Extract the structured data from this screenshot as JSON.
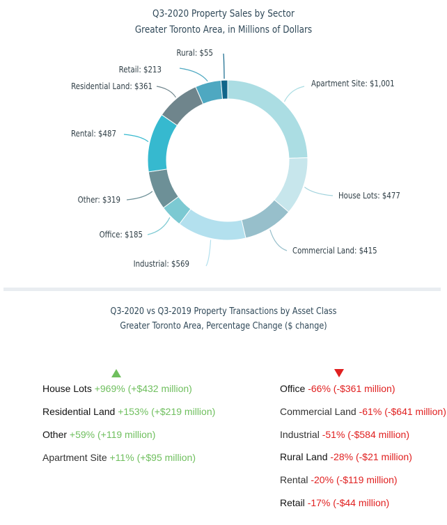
{
  "pie": {
    "title": "Q3-2020 Property Sales by Sector",
    "subtitle": "Greater Toronto Area, in Millions of Dollars"
  },
  "chart_data": [
    {
      "type": "pie",
      "title": "Q3-2020 Property Sales by Sector",
      "subtitle": "Greater Toronto Area, in Millions of Dollars",
      "slices": [
        {
          "name": "Apartment Site",
          "value": 1001,
          "label": "Apartment Site: $1,001",
          "color": "#abdde3"
        },
        {
          "name": "House Lots",
          "value": 477,
          "label": "House Lots: $477",
          "color": "#c7e6ec"
        },
        {
          "name": "Commercial Land",
          "value": 415,
          "label": "Commercial Land: $415",
          "color": "#97bfcb"
        },
        {
          "name": "Industrial",
          "value": 569,
          "label": "Industrial: $569",
          "color": "#b3e0ee"
        },
        {
          "name": "Office",
          "value": 185,
          "label": "Office: $185",
          "color": "#7cc9d2"
        },
        {
          "name": "Other",
          "value": 319,
          "label": "Other: $319",
          "color": "#6d9097"
        },
        {
          "name": "Rental",
          "value": 487,
          "label": "Rental: $487",
          "color": "#36b9cf"
        },
        {
          "name": "Residential Land",
          "value": 361,
          "label": "Residential Land: $361",
          "color": "#6f858c"
        },
        {
          "name": "Retail",
          "value": 213,
          "label": "Retail: $213",
          "color": "#4ea8c1"
        },
        {
          "name": "Rural",
          "value": 55,
          "label": "Rural: $55",
          "color": "#11668a"
        }
      ]
    },
    {
      "type": "table",
      "title": "Q3-2020 vs Q3-2019 Property Transactions by Asset Class",
      "subtitle": "Greater Toronto Area, Percentage Change ($ change)",
      "gains": [
        {
          "asset": "House Lots",
          "pct": "+969%",
          "dollars": "(+$432 million)"
        },
        {
          "asset": "Residential Land",
          "pct": "+153%",
          "dollars": "(+$219 million)"
        },
        {
          "asset": "Other",
          "pct": "+59%",
          "dollars": "(+119 million)"
        },
        {
          "asset": "Apartment Site",
          "pct": "+11%",
          "dollars": "(+$95 million)"
        }
      ],
      "losses": [
        {
          "asset": "Office",
          "pct": "-66%",
          "dollars": "(-$361 million)"
        },
        {
          "asset": "Commercial Land",
          "pct": "-61%",
          "dollars": " (-$641 million)"
        },
        {
          "asset": "Industrial",
          "pct": "-51%",
          "dollars": "(-$584 million)"
        },
        {
          "asset": "Rural Land",
          "pct": "-28%",
          "dollars": "(-$21 million)"
        },
        {
          "asset": "Rental",
          "pct": "-20%",
          "dollars": "(-$119 million)"
        },
        {
          "asset": "Retail",
          "pct": "-17%",
          "dollars": "(-$44 million)"
        }
      ]
    }
  ],
  "change": {
    "title": "Q3-2020 vs Q3-2019 Property Transactions by Asset Class",
    "subtitle": "Greater Toronto Area, Percentage Change ($ change)",
    "up_icon": "triangle-up-icon",
    "down_icon": "triangle-down-icon",
    "colors": {
      "positive": "#6fbf5e",
      "negative": "#e02020"
    }
  }
}
